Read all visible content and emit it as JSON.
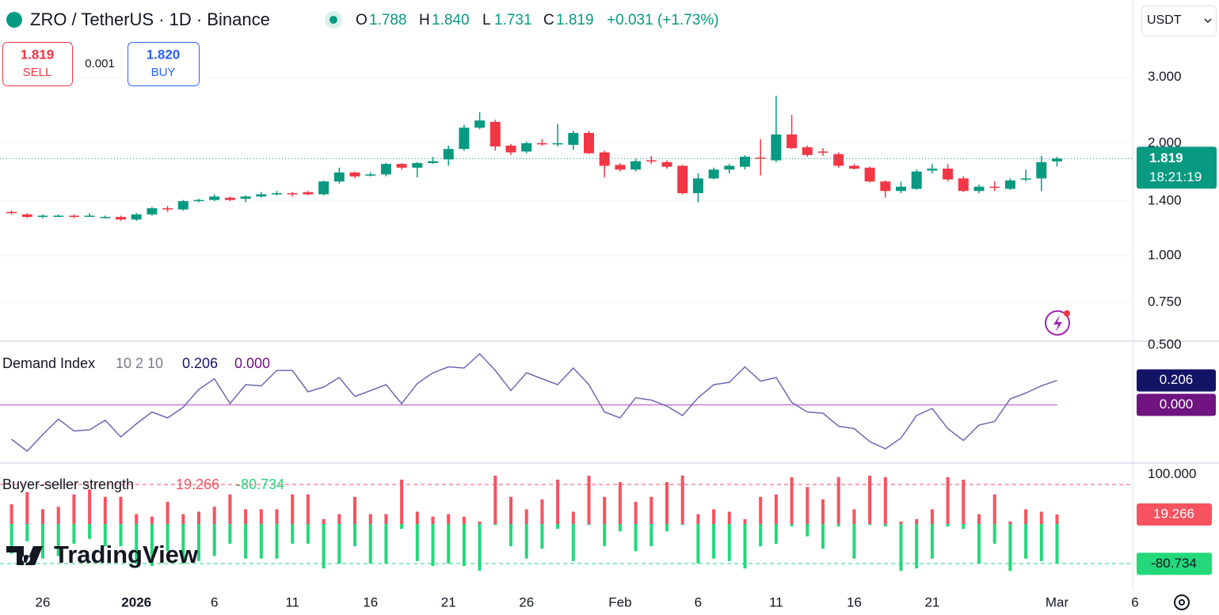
{
  "header": {
    "symbol": "ZRO / TetherUS · 1D · Binance",
    "ohlc": [
      {
        "key": "O",
        "value": "1.788"
      },
      {
        "key": "H",
        "value": "1.840"
      },
      {
        "key": "L",
        "value": "1.731"
      },
      {
        "key": "C",
        "value": "1.819"
      }
    ],
    "change": "+0.031 (+1.73%)"
  },
  "trade": {
    "sell_price": "1.819",
    "sell": "SELL",
    "spread": "0.001",
    "buy_price": "1.820",
    "buy": "BUY"
  },
  "currency": "USDT",
  "logo": "TradingView",
  "chart_data": [
    {
      "type": "candlestick",
      "log_scale": true,
      "grid": true,
      "up_color": "#089981",
      "down_color": "#f23645",
      "categories": [
        null,
        null,
        "26",
        null,
        null,
        null,
        null,
        null,
        "2026",
        null,
        null,
        null,
        null,
        "6",
        null,
        null,
        null,
        null,
        "11",
        null,
        null,
        null,
        null,
        "16",
        null,
        null,
        null,
        null,
        "21",
        null,
        null,
        null,
        null,
        "26",
        null,
        null,
        null,
        null,
        null,
        "Feb",
        null,
        null,
        null,
        null,
        "6",
        null,
        null,
        null,
        null,
        "11",
        null,
        null,
        null,
        null,
        "16",
        null,
        null,
        null,
        null,
        "21",
        null,
        null,
        null,
        null,
        null,
        null,
        null,
        "Mar",
        null,
        null,
        null,
        null,
        "6"
      ],
      "open": [
        1.31,
        1.29,
        1.27,
        1.28,
        1.28,
        1.28,
        1.27,
        1.27,
        1.25,
        1.29,
        1.34,
        1.33,
        1.4,
        1.41,
        1.43,
        1.42,
        1.44,
        1.46,
        1.47,
        1.48,
        1.46,
        1.58,
        1.67,
        1.64,
        1.65,
        1.76,
        1.72,
        1.77,
        1.81,
        1.93,
        2.2,
        2.28,
        1.97,
        1.9,
        2.0,
        1.99,
        1.98,
        2.13,
        1.89,
        1.75,
        1.7,
        1.8,
        1.78,
        1.74,
        1.47,
        1.61,
        1.7,
        1.73,
        1.83,
        1.8,
        2.11,
        1.95,
        1.9,
        1.87,
        1.74,
        1.72,
        1.58,
        1.49,
        1.51,
        1.69,
        1.71,
        1.61,
        1.49,
        1.53,
        1.51,
        1.6,
        1.61,
        1.788,
        null,
        null,
        null,
        null,
        null
      ],
      "high": [
        1.32,
        1.3,
        1.29,
        1.29,
        1.29,
        1.3,
        1.28,
        1.28,
        1.3,
        1.35,
        1.36,
        1.41,
        1.42,
        1.46,
        1.44,
        1.45,
        1.48,
        1.49,
        1.48,
        1.49,
        1.59,
        1.72,
        1.68,
        1.67,
        1.77,
        1.77,
        1.78,
        1.84,
        1.97,
        2.24,
        2.42,
        2.31,
        1.99,
        2.02,
        2.05,
        2.25,
        2.16,
        2.16,
        1.91,
        1.77,
        1.82,
        1.85,
        1.8,
        1.75,
        1.66,
        1.72,
        1.76,
        1.86,
        2.05,
        2.68,
        2.38,
        1.97,
        1.94,
        1.89,
        1.76,
        1.73,
        1.59,
        1.58,
        1.7,
        1.76,
        1.76,
        1.63,
        1.55,
        1.58,
        1.61,
        1.7,
        1.85,
        1.84,
        null,
        null,
        null,
        null,
        null
      ],
      "low": [
        1.29,
        1.26,
        1.26,
        1.27,
        1.26,
        1.27,
        1.26,
        1.24,
        1.24,
        1.28,
        1.31,
        1.32,
        1.39,
        1.4,
        1.4,
        1.39,
        1.43,
        1.45,
        1.44,
        1.45,
        1.45,
        1.56,
        1.61,
        1.63,
        1.63,
        1.7,
        1.62,
        1.76,
        1.74,
        1.91,
        2.18,
        1.91,
        1.86,
        1.88,
        1.97,
        1.96,
        1.92,
        1.87,
        1.62,
        1.68,
        1.68,
        1.76,
        1.71,
        1.46,
        1.39,
        1.6,
        1.66,
        1.7,
        1.64,
        1.78,
        1.93,
        1.84,
        1.85,
        1.72,
        1.7,
        1.57,
        1.43,
        1.47,
        1.5,
        1.66,
        1.58,
        1.48,
        1.47,
        1.49,
        1.5,
        1.58,
        1.49,
        1.731,
        null,
        null,
        null,
        null,
        null
      ],
      "close": [
        1.3,
        1.27,
        1.28,
        1.28,
        1.27,
        1.28,
        1.27,
        1.25,
        1.29,
        1.34,
        1.33,
        1.4,
        1.41,
        1.44,
        1.41,
        1.44,
        1.46,
        1.47,
        1.46,
        1.46,
        1.58,
        1.67,
        1.63,
        1.65,
        1.76,
        1.72,
        1.77,
        1.79,
        1.93,
        2.2,
        2.3,
        1.96,
        1.89,
        2.0,
        1.99,
        2.0,
        2.13,
        1.88,
        1.74,
        1.7,
        1.79,
        1.79,
        1.73,
        1.47,
        1.61,
        1.7,
        1.74,
        1.84,
        1.82,
        2.11,
        1.94,
        1.86,
        1.89,
        1.74,
        1.71,
        1.58,
        1.49,
        1.53,
        1.68,
        1.71,
        1.6,
        1.49,
        1.53,
        1.52,
        1.59,
        1.61,
        1.78,
        1.819,
        null,
        null,
        null,
        null,
        null
      ],
      "ylim": [
        0.594,
        4.83
      ],
      "yticks": [
        {
          "value": 3,
          "label": "3.000"
        },
        {
          "value": 2,
          "label": "2.000"
        },
        {
          "value": 1.4,
          "label": "1.400"
        },
        {
          "value": 1,
          "label": "1.000"
        },
        {
          "value": 0.75,
          "label": "0.750"
        },
        {
          "value": 0.5,
          "label": "0.500"
        }
      ],
      "last_price": {
        "value": 1.819,
        "label": "1.819"
      },
      "countdown": "18:21:19"
    },
    {
      "type": "line",
      "title": "Demand Index",
      "params": "10 2 10",
      "series": [
        {
          "color": "#6a6ab4",
          "values": [
            -0.29,
            -0.39,
            -0.25,
            -0.12,
            -0.22,
            -0.21,
            -0.13,
            -0.27,
            -0.16,
            -0.06,
            -0.11,
            -0.02,
            0.13,
            0.22,
            0.01,
            0.17,
            0.16,
            0.29,
            0.29,
            0.11,
            0.15,
            0.23,
            0.07,
            0.12,
            0.17,
            0.01,
            0.18,
            0.27,
            0.32,
            0.31,
            0.43,
            0.29,
            0.12,
            0.27,
            0.22,
            0.17,
            0.31,
            0.17,
            -0.06,
            -0.11,
            0.06,
            0.04,
            -0.01,
            -0.09,
            0.06,
            0.17,
            0.19,
            0.32,
            0.2,
            0.23,
            0.02,
            -0.06,
            -0.07,
            -0.18,
            -0.2,
            -0.31,
            -0.37,
            -0.28,
            -0.09,
            -0.03,
            -0.2,
            -0.3,
            -0.17,
            -0.14,
            0.05,
            0.1,
            0.16,
            0.206,
            null,
            null,
            null,
            null,
            null
          ]
        }
      ],
      "hline": {
        "value": 0,
        "color": "#c77dcf"
      },
      "legend_values": [
        {
          "value": 0.206,
          "label": "0.206",
          "color": "#131466"
        },
        {
          "value": 0,
          "label": "0.000",
          "color": "#6f1480"
        }
      ],
      "ylim": [
        -0.49,
        0.53
      ]
    },
    {
      "type": "bar",
      "title": "Buyer-seller strength",
      "series": [
        {
          "color": "#f7525f",
          "values": [
            40,
            65,
            30,
            35,
            60,
            70,
            55,
            55,
            20,
            15,
            45,
            20,
            25,
            35,
            60,
            30,
            30,
            30,
            60,
            60,
            10,
            20,
            55,
            20,
            20,
            90,
            25,
            15,
            20,
            15,
            5,
            98,
            55,
            30,
            50,
            90,
            25,
            98,
            55,
            85,
            45,
            55,
            85,
            98,
            20,
            30,
            25,
            10,
            55,
            60,
            95,
            75,
            50,
            95,
            30,
            98,
            95,
            5,
            10,
            30,
            95,
            90,
            20,
            60,
            5,
            30,
            25,
            19.266,
            null,
            null,
            null,
            null,
            null
          ]
        },
        {
          "color": "#22d87a",
          "values": [
            -60,
            -35,
            -70,
            -65,
            -40,
            -30,
            -45,
            -45,
            -80,
            -85,
            -55,
            -80,
            -75,
            -65,
            -40,
            -70,
            -70,
            -70,
            -40,
            -40,
            -90,
            -80,
            -45,
            -80,
            -80,
            -10,
            -75,
            -85,
            -80,
            -85,
            -95,
            -2,
            -45,
            -70,
            -50,
            -10,
            -75,
            -2,
            -45,
            -15,
            -55,
            -45,
            -15,
            -2,
            -80,
            -70,
            -75,
            -90,
            -45,
            -40,
            -5,
            -25,
            -50,
            -5,
            -70,
            -2,
            -5,
            -95,
            -90,
            -70,
            -5,
            -10,
            -80,
            -40,
            -95,
            -70,
            -75,
            -80.734,
            null,
            null,
            null,
            null,
            null
          ]
        }
      ],
      "hlines": [
        {
          "value": 80,
          "color": "#f7525f"
        },
        {
          "value": -80,
          "color": "#22d87a"
        }
      ],
      "legend_values": [
        {
          "value": 19.266,
          "label": "19.266",
          "color": "#f7525f"
        },
        {
          "value": -80.734,
          "label": "-80.734",
          "color": "#22d87a"
        }
      ],
      "ylim": [
        -125,
        122
      ],
      "yticks": [
        {
          "value": 100,
          "label": "100.000"
        }
      ]
    }
  ]
}
